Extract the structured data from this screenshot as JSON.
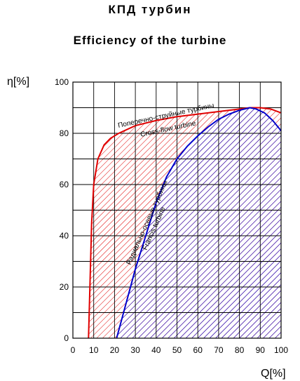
{
  "header": {
    "title_ru": "КПД турбин",
    "title_en": "Efficiency of the turbine"
  },
  "colors": {
    "crossflow": "#e00000",
    "francis": "#0000cc",
    "grid": "#000000"
  },
  "chart_data": {
    "type": "area",
    "title": "Efficiency of the turbine",
    "xlabel": "Q[%]",
    "ylabel": "η[%]",
    "xlim": [
      0,
      100
    ],
    "ylim": [
      0,
      100
    ],
    "xticks": [
      "0",
      "10",
      "20",
      "30",
      "40",
      "50",
      "60",
      "70",
      "80",
      "90",
      "100"
    ],
    "yticks": [
      "0",
      "20",
      "40",
      "60",
      "80",
      "100"
    ],
    "grid": true,
    "series": [
      {
        "name": "Cross-flow turbine",
        "label_ru": "Поперечно-струйные турбины",
        "label_en": "Cross-flow turbine",
        "x": [
          7.5,
          8,
          9,
          10,
          12,
          15,
          18,
          22,
          30,
          40,
          50,
          60,
          70,
          80,
          85,
          90,
          95,
          100
        ],
        "y": [
          0,
          15,
          45,
          60,
          70,
          75.5,
          78,
          80,
          83,
          85,
          86.5,
          87.5,
          88.5,
          89.5,
          90,
          90,
          89.5,
          88
        ]
      },
      {
        "name": "Francis turbine",
        "label_ru": "Радиально-осевые турбины",
        "label_en": "Francis turbine",
        "x": [
          21,
          25,
          30,
          35,
          40,
          45,
          50,
          55,
          60,
          65,
          70,
          75,
          80,
          85,
          88,
          92,
          96,
          100
        ],
        "y": [
          0,
          12,
          27,
          40,
          53,
          63,
          70,
          75,
          79,
          82.5,
          85.5,
          87.5,
          89,
          90,
          89.5,
          88,
          85,
          81
        ]
      }
    ]
  }
}
